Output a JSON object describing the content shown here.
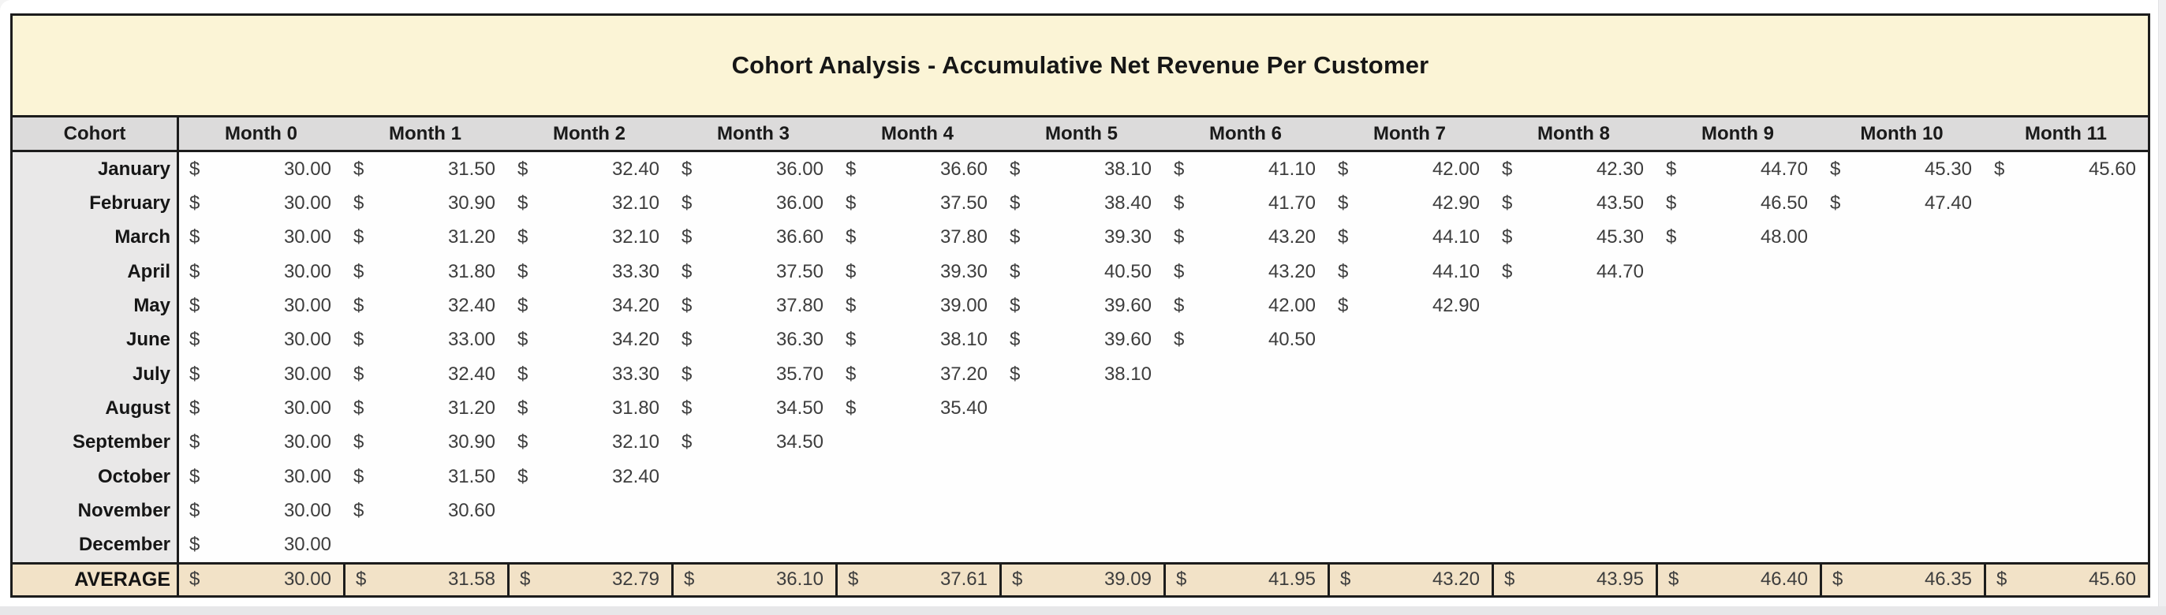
{
  "title": "Cohort Analysis - Accumulative Net Revenue Per Customer",
  "currency_symbol": "$",
  "colors": {
    "title_background": "#fbf4d6",
    "header_background": "#dcdbdb",
    "row_label_background": "#e9e8e8",
    "data_background": "#fefefe",
    "average_background": "#f2e2c7",
    "border": "#1c1c1c"
  },
  "table": {
    "cohort_header": "Cohort",
    "month_headers": [
      "Month 0",
      "Month 1",
      "Month 2",
      "Month 3",
      "Month 4",
      "Month 5",
      "Month 6",
      "Month 7",
      "Month 8",
      "Month 9",
      "Month 10",
      "Month 11"
    ],
    "rows": [
      {
        "label": "January",
        "values": [
          "30.00",
          "31.50",
          "32.40",
          "36.00",
          "36.60",
          "38.10",
          "41.10",
          "42.00",
          "42.30",
          "44.70",
          "45.30",
          "45.60"
        ]
      },
      {
        "label": "February",
        "values": [
          "30.00",
          "30.90",
          "32.10",
          "36.00",
          "37.50",
          "38.40",
          "41.70",
          "42.90",
          "43.50",
          "46.50",
          "47.40",
          null
        ]
      },
      {
        "label": "March",
        "values": [
          "30.00",
          "31.20",
          "32.10",
          "36.60",
          "37.80",
          "39.30",
          "43.20",
          "44.10",
          "45.30",
          "48.00",
          null,
          null
        ]
      },
      {
        "label": "April",
        "values": [
          "30.00",
          "31.80",
          "33.30",
          "37.50",
          "39.30",
          "40.50",
          "43.20",
          "44.10",
          "44.70",
          null,
          null,
          null
        ]
      },
      {
        "label": "May",
        "values": [
          "30.00",
          "32.40",
          "34.20",
          "37.80",
          "39.00",
          "39.60",
          "42.00",
          "42.90",
          null,
          null,
          null,
          null
        ]
      },
      {
        "label": "June",
        "values": [
          "30.00",
          "33.00",
          "34.20",
          "36.30",
          "38.10",
          "39.60",
          "40.50",
          null,
          null,
          null,
          null,
          null
        ]
      },
      {
        "label": "July",
        "values": [
          "30.00",
          "32.40",
          "33.30",
          "35.70",
          "37.20",
          "38.10",
          null,
          null,
          null,
          null,
          null,
          null
        ]
      },
      {
        "label": "August",
        "values": [
          "30.00",
          "31.20",
          "31.80",
          "34.50",
          "35.40",
          null,
          null,
          null,
          null,
          null,
          null,
          null
        ]
      },
      {
        "label": "September",
        "values": [
          "30.00",
          "30.90",
          "32.10",
          "34.50",
          null,
          null,
          null,
          null,
          null,
          null,
          null,
          null
        ]
      },
      {
        "label": "October",
        "values": [
          "30.00",
          "31.50",
          "32.40",
          null,
          null,
          null,
          null,
          null,
          null,
          null,
          null,
          null
        ]
      },
      {
        "label": "November",
        "values": [
          "30.00",
          "30.60",
          null,
          null,
          null,
          null,
          null,
          null,
          null,
          null,
          null,
          null
        ]
      },
      {
        "label": "December",
        "values": [
          "30.00",
          null,
          null,
          null,
          null,
          null,
          null,
          null,
          null,
          null,
          null,
          null
        ]
      }
    ],
    "average_row": {
      "label": "AVERAGE",
      "values": [
        "30.00",
        "31.58",
        "32.79",
        "36.10",
        "37.61",
        "39.09",
        "41.95",
        "43.20",
        "43.95",
        "46.40",
        "46.35",
        "45.60"
      ]
    }
  }
}
